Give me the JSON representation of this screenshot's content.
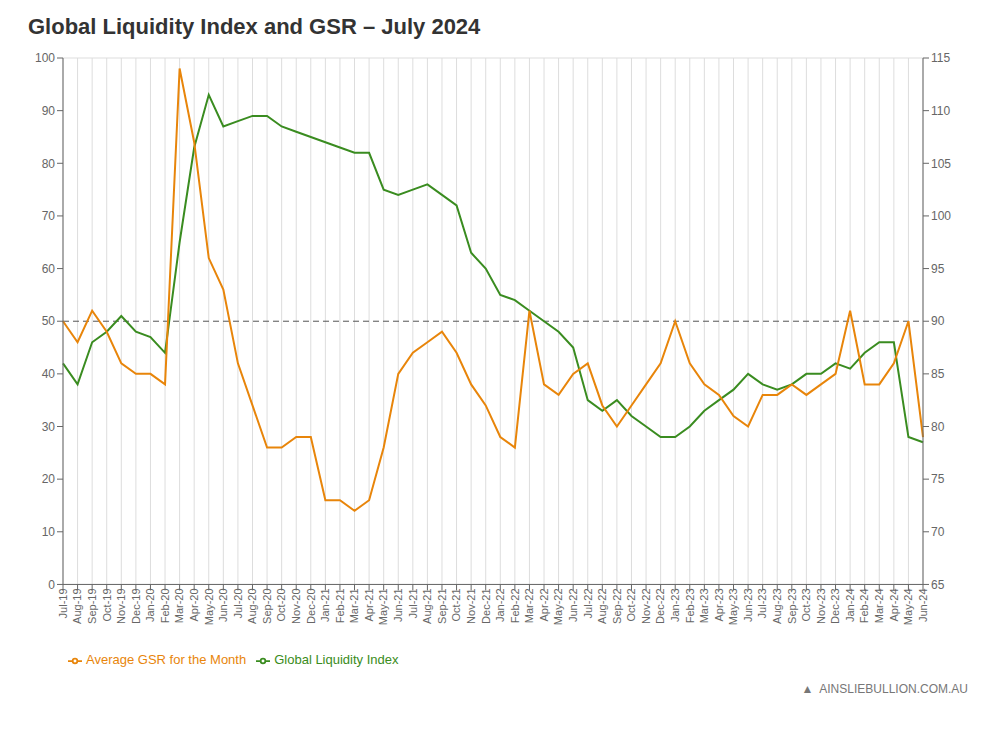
{
  "chart_data": {
    "type": "line",
    "title": "Global Liquidity Index and GSR – July 2024",
    "categories": [
      "Jul-19",
      "Aug-19",
      "Sep-19",
      "Oct-19",
      "Nov-19",
      "Dec-19",
      "Jan-20",
      "Feb-20",
      "Mar-20",
      "Apr-20",
      "May-20",
      "Jun-20",
      "Jul-20",
      "Aug-20",
      "Sep-20",
      "Oct-20",
      "Nov-20",
      "Dec-20",
      "Jan-21",
      "Feb-21",
      "Mar-21",
      "Apr-21",
      "May-21",
      "Jun-21",
      "Jul-21",
      "Aug-21",
      "Sep-21",
      "Oct-21",
      "Nov-21",
      "Dec-21",
      "Jan-22",
      "Feb-22",
      "Mar-22",
      "Apr-22",
      "May-22",
      "Jun-22",
      "Jul-22",
      "Aug-22",
      "Sep-22",
      "Oct-22",
      "Nov-22",
      "Dec-22",
      "Jan-23",
      "Feb-23",
      "Mar-23",
      "Apr-23",
      "May-23",
      "Jun-23",
      "Jul-23",
      "Aug-23",
      "Sep-23",
      "Oct-23",
      "Nov-23",
      "Dec-23",
      "Jan-24",
      "Feb-24",
      "Mar-24",
      "Apr-24",
      "May-24",
      "Jun-24"
    ],
    "series": [
      {
        "name": "Global Liquidity Index",
        "color": "#3a8c20",
        "values": [
          42,
          38,
          46,
          48,
          51,
          48,
          47,
          44,
          65,
          83,
          93,
          87,
          88,
          89,
          89,
          87,
          86,
          85,
          84,
          83,
          82,
          82,
          75,
          74,
          75,
          76,
          74,
          72,
          63,
          60,
          55,
          54,
          52,
          50,
          48,
          45,
          35,
          33,
          35,
          32,
          30,
          28,
          28,
          30,
          33,
          35,
          37,
          40,
          38,
          37,
          38,
          40,
          40,
          42,
          41,
          44,
          46,
          46,
          28,
          27
        ]
      },
      {
        "name": "Average GSR for the Month",
        "color": "#e8850a",
        "axis": "y2",
        "values": [
          90,
          88,
          91,
          89,
          86,
          85,
          85,
          84,
          114,
          107,
          96,
          93,
          86,
          82,
          78,
          78,
          79,
          79,
          73,
          73,
          72,
          73,
          78,
          85,
          87,
          88,
          89,
          87,
          84,
          82,
          79,
          78,
          91,
          84,
          83,
          85,
          86,
          82,
          80,
          82,
          84,
          86,
          90,
          86,
          84,
          83,
          81,
          80,
          83,
          83,
          84,
          83,
          84,
          85,
          91,
          84,
          84,
          86,
          90,
          79
        ]
      }
    ],
    "ylim": [
      0,
      100
    ],
    "yticks": [
      0,
      10,
      20,
      30,
      40,
      50,
      60,
      70,
      80,
      90,
      100
    ],
    "y2lim": [
      65,
      115
    ],
    "y2ticks": [
      65,
      70,
      75,
      80,
      85,
      90,
      95,
      100,
      105,
      110,
      115
    ],
    "grid": true,
    "legend": "bottom",
    "hline_y": 50,
    "annotations": [
      "▲",
      "AINSLIEBULLION.COM.AU"
    ]
  }
}
